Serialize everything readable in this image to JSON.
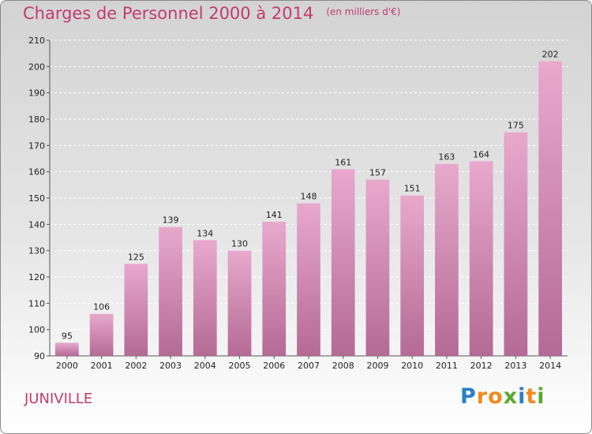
{
  "chart_data": {
    "type": "bar",
    "title": "Charges de Personnel 2000 à 2014",
    "subtitle": "(en milliers d'€)",
    "categories": [
      "2000",
      "2001",
      "2002",
      "2003",
      "2004",
      "2005",
      "2006",
      "2007",
      "2008",
      "2009",
      "2010",
      "2011",
      "2012",
      "2013",
      "2014"
    ],
    "values": [
      95,
      106,
      125,
      139,
      134,
      130,
      141,
      148,
      161,
      157,
      151,
      163,
      164,
      175,
      202
    ],
    "ylim": [
      90,
      210
    ],
    "yticks": [
      90,
      100,
      110,
      120,
      130,
      140,
      150,
      160,
      170,
      180,
      190,
      200,
      210
    ],
    "xlabel": "",
    "ylabel": "",
    "grid": true,
    "bar_color_top": "#e8a9cd",
    "bar_color_bottom": "#b46a95"
  },
  "commune": "JUNIVILLE",
  "logo": {
    "letters": [
      "P",
      "r",
      "o",
      "x",
      "i",
      "t",
      "i"
    ],
    "colors": [
      "#2c7fc4",
      "#f08a1c",
      "#f08a1c",
      "#5aa832",
      "#2c7fc4",
      "#f08a1c",
      "#5aa832"
    ]
  },
  "colors": {
    "accent": "#c23b6d"
  }
}
